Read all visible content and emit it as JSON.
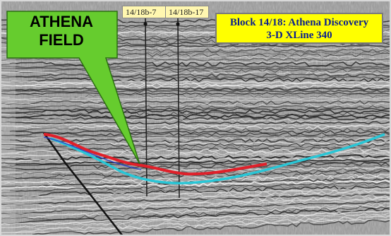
{
  "annotation": {
    "line1": "ATHENA",
    "line2": "FIELD"
  },
  "title": {
    "line1": "Block 14/18: Athena Discovery",
    "line2": "3-D XLine 340"
  },
  "wells": [
    {
      "label": "14/18b-7"
    },
    {
      "label": "14/18b-17"
    }
  ],
  "colors": {
    "callout_fill": "#66cc2e",
    "title_fill": "#ffff00",
    "title_text": "#0a1f8f",
    "horizon_red": "#e0202a",
    "horizon_cyan": "#29c6d6",
    "horizon_blue": "#2f45c8",
    "fault": "#111111"
  }
}
